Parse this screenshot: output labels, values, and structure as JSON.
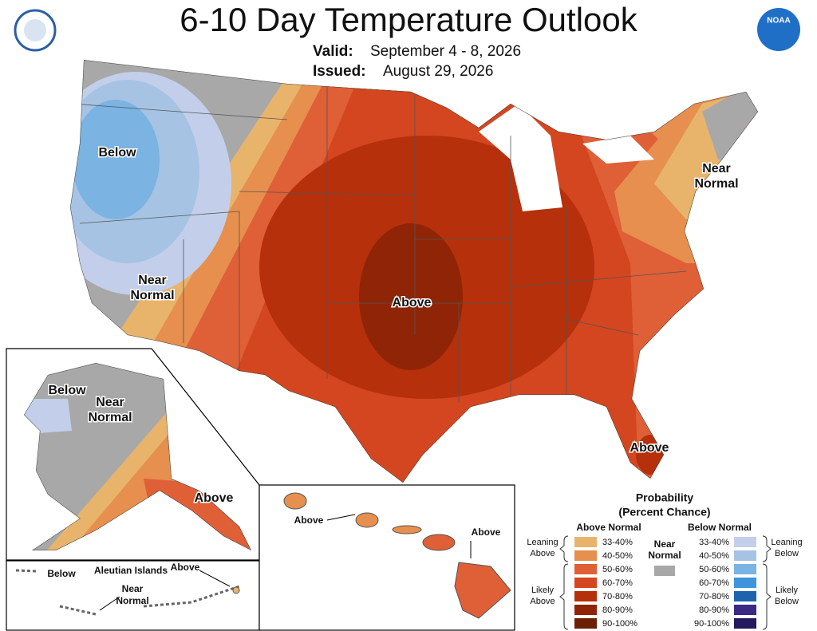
{
  "header": {
    "title": "6-10 Day Temperature Outlook",
    "valid_label": "Valid:",
    "valid": "September 4 - 8, 2026",
    "issued_label": "Issued:",
    "issued": "August 29, 2026",
    "logo": "NOAA"
  },
  "main_map": {
    "labels": [
      {
        "lines": [
          "Below"
        ]
      },
      {
        "lines": [
          "Near",
          "Normal"
        ]
      },
      {
        "lines": [
          "Near",
          "Normal"
        ]
      },
      {
        "lines": [
          "Above"
        ]
      },
      {
        "lines": [
          "Above"
        ]
      }
    ]
  },
  "alaska": {
    "labels": [
      {
        "lines": [
          "Below"
        ]
      },
      {
        "lines": [
          "Near",
          "Normal"
        ]
      },
      {
        "lines": [
          "Above"
        ]
      }
    ]
  },
  "hawaii": {
    "labels": [
      {
        "lines": [
          "Above"
        ]
      },
      {
        "lines": [
          "Above"
        ]
      }
    ]
  },
  "aleutians": {
    "title": "Aleutian Islands",
    "labels": [
      {
        "lines": [
          "Below"
        ]
      },
      {
        "lines": [
          "Above"
        ]
      },
      {
        "lines": [
          "Near",
          "Normal"
        ]
      }
    ]
  },
  "legend": {
    "title": [
      "Probability",
      "(Percent Chance)"
    ],
    "above_title": "Above Normal",
    "below_title": "Below Normal",
    "above": [
      {
        "label": "33-40%",
        "color": "#e8b46c"
      },
      {
        "label": "40-50%",
        "color": "#e68f4e"
      },
      {
        "label": "50-60%",
        "color": "#df5f37"
      },
      {
        "label": "60-70%",
        "color": "#d3461f"
      },
      {
        "label": "70-80%",
        "color": "#b5300b"
      },
      {
        "label": "80-90%",
        "color": "#8f2506"
      },
      {
        "label": "90-100%",
        "color": "#6b1f04"
      }
    ],
    "below": [
      {
        "label": "33-40%",
        "color": "#c3cfea"
      },
      {
        "label": "40-50%",
        "color": "#a6c3e4"
      },
      {
        "label": "50-60%",
        "color": "#7bb3e3"
      },
      {
        "label": "60-70%",
        "color": "#3f95db"
      },
      {
        "label": "70-80%",
        "color": "#1d64ad"
      },
      {
        "label": "80-90%",
        "color": "#3a2a86"
      },
      {
        "label": "90-100%",
        "color": "#241a5c"
      }
    ],
    "near": {
      "lines": [
        "Near",
        "Normal"
      ],
      "color": "#a8a8a8"
    },
    "brackets": [
      [
        "Leaning",
        "Above"
      ],
      [
        "Likely",
        "Above"
      ],
      [
        "Leaning",
        "Below"
      ],
      [
        "Likely",
        "Below"
      ]
    ]
  }
}
